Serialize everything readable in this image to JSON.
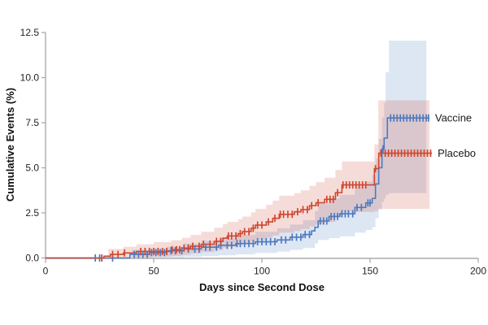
{
  "colors": {
    "vaccine_line": "#4d79bf",
    "placebo_line": "#d0462f",
    "vaccine_band": "rgba(77,121,191,0.19)",
    "placebo_band": "rgba(208,70,47,0.19)",
    "axis_line": "#ababab",
    "tick_text": "#231f20"
  },
  "chart_data": {
    "type": "line",
    "subtype": "kaplan-meier-cumulative-incidence-steps",
    "title": "",
    "xlabel": "Days since Second Dose",
    "ylabel": "Cumulative Events (%)",
    "xlim": [
      0,
      200
    ],
    "ylim": [
      0,
      12.5
    ],
    "grid": false,
    "legend_position": "labels-at-line-ends",
    "x_ticks": [
      {
        "v": 0,
        "label": "0"
      },
      {
        "v": 50,
        "label": "50"
      },
      {
        "v": 100,
        "label": "100"
      },
      {
        "v": 150,
        "label": "150"
      },
      {
        "v": 200,
        "label": "200"
      }
    ],
    "y_ticks": [
      {
        "v": 0,
        "label": "0.0"
      },
      {
        "v": 2.5,
        "label": "2.5"
      },
      {
        "v": 5,
        "label": "5.0"
      },
      {
        "v": 7.5,
        "label": "7.5"
      },
      {
        "v": 10,
        "label": "10.0"
      },
      {
        "v": 12.5,
        "label": "12.5"
      }
    ],
    "series": [
      {
        "name": "Vaccine",
        "color": "#4d79bf",
        "band_color": "rgba(77,121,191,0.19)",
        "final_value_pct": 7.76,
        "steps": [
          [
            0,
            0
          ],
          [
            39,
            0.2
          ],
          [
            48,
            0.3
          ],
          [
            56,
            0.4
          ],
          [
            64,
            0.5
          ],
          [
            72,
            0.6
          ],
          [
            80,
            0.7
          ],
          [
            88,
            0.8
          ],
          [
            97,
            0.9
          ],
          [
            107,
            1.0
          ],
          [
            113,
            1.15
          ],
          [
            119,
            1.3
          ],
          [
            123,
            1.5
          ],
          [
            124.5,
            1.7
          ],
          [
            126,
            2.05
          ],
          [
            131,
            2.3
          ],
          [
            136,
            2.45
          ],
          [
            143,
            2.8
          ],
          [
            148,
            3.05
          ],
          [
            151,
            3.3
          ],
          [
            152.5,
            4.1
          ],
          [
            154,
            5.0
          ],
          [
            155.5,
            6.05
          ],
          [
            156.5,
            6.65
          ],
          [
            158,
            7.76
          ],
          [
            177.4,
            7.76
          ]
        ],
        "censor_days": [
          23,
          25,
          31,
          41,
          43,
          45,
          47,
          49,
          51,
          53,
          55,
          58,
          60,
          63,
          66,
          69,
          71,
          74,
          76,
          79,
          81,
          84,
          86,
          88.5,
          90,
          92,
          94,
          96,
          98,
          100,
          102,
          104,
          106,
          109,
          111,
          114,
          116,
          118,
          120,
          122,
          127,
          128.5,
          130,
          132,
          133.5,
          135,
          137,
          138.5,
          140,
          142,
          144,
          146,
          149,
          150,
          156,
          159.5,
          161,
          162.5,
          164,
          165.5,
          167,
          168.5,
          170,
          171.5,
          173,
          174.5,
          176,
          177
        ],
        "band": [
          [
            40,
            0,
            0.45
          ],
          [
            56,
            0.03,
            0.62
          ],
          [
            64,
            0.06,
            0.8
          ],
          [
            72,
            0.1,
            0.95
          ],
          [
            80,
            0.15,
            1.1
          ],
          [
            88,
            0.2,
            1.28
          ],
          [
            97,
            0.28,
            1.45
          ],
          [
            107,
            0.35,
            1.65
          ],
          [
            113,
            0.45,
            1.85
          ],
          [
            119,
            0.55,
            2.1
          ],
          [
            124.5,
            0.8,
            2.6
          ],
          [
            126,
            1.0,
            3.0
          ],
          [
            131,
            1.1,
            3.3
          ],
          [
            136,
            1.2,
            3.5
          ],
          [
            143,
            1.4,
            3.95
          ],
          [
            148,
            1.55,
            4.25
          ],
          [
            151,
            1.7,
            4.6
          ],
          [
            152.5,
            2.2,
            5.5
          ],
          [
            154,
            2.7,
            6.6
          ],
          [
            155.5,
            3.1,
            7.8
          ],
          [
            156.5,
            3.3,
            8.6
          ],
          [
            157.2,
            3.5,
            10.3
          ],
          [
            158.7,
            3.6,
            12.05
          ],
          [
            176,
            3.6,
            12.05
          ]
        ]
      },
      {
        "name": "Placebo",
        "color": "#d0462f",
        "band_color": "rgba(208,70,47,0.19)",
        "final_value_pct": 5.81,
        "steps": [
          [
            0,
            0
          ],
          [
            27,
            0.1
          ],
          [
            30,
            0.2
          ],
          [
            36,
            0.28
          ],
          [
            42,
            0.36
          ],
          [
            58,
            0.46
          ],
          [
            63,
            0.55
          ],
          [
            67,
            0.65
          ],
          [
            72,
            0.76
          ],
          [
            78,
            0.92
          ],
          [
            82,
            1.1
          ],
          [
            84,
            1.22
          ],
          [
            89,
            1.35
          ],
          [
            91,
            1.46
          ],
          [
            95,
            1.65
          ],
          [
            97,
            1.82
          ],
          [
            102,
            2.0
          ],
          [
            105,
            2.2
          ],
          [
            108,
            2.42
          ],
          [
            115,
            2.56
          ],
          [
            118,
            2.68
          ],
          [
            122,
            2.9
          ],
          [
            125,
            3.06
          ],
          [
            129,
            3.25
          ],
          [
            134,
            3.62
          ],
          [
            137,
            4.05
          ],
          [
            152,
            4.95
          ],
          [
            154,
            5.81
          ],
          [
            178.6,
            5.81
          ]
        ],
        "censor_days": [
          26,
          31,
          33.5,
          36.5,
          44,
          46,
          48,
          50,
          52,
          54,
          56,
          58.5,
          60.5,
          62,
          64,
          66,
          68,
          71,
          73,
          76,
          79,
          81,
          84.5,
          86,
          88,
          90,
          92,
          94,
          96,
          98,
          100,
          103,
          106,
          108.5,
          110,
          112,
          114,
          116.5,
          119,
          121,
          123,
          126,
          130,
          131.5,
          133,
          135,
          137.5,
          139,
          140.5,
          142,
          143.5,
          145,
          146.5,
          148,
          152.5,
          155,
          157,
          158.5,
          160,
          161.5,
          163,
          164.5,
          166,
          167.5,
          169,
          170.5,
          172,
          173.5,
          175,
          176.5,
          178
        ],
        "band": [
          [
            29,
            0,
            0.5
          ],
          [
            36,
            0.02,
            0.62
          ],
          [
            42,
            0.05,
            0.76
          ],
          [
            50,
            0.08,
            0.88
          ],
          [
            58,
            0.12,
            0.98
          ],
          [
            63,
            0.18,
            1.12
          ],
          [
            67,
            0.25,
            1.28
          ],
          [
            72,
            0.33,
            1.45
          ],
          [
            78,
            0.45,
            1.68
          ],
          [
            82,
            0.55,
            1.88
          ],
          [
            84,
            0.62,
            2.0
          ],
          [
            89,
            0.7,
            2.15
          ],
          [
            91,
            0.78,
            2.3
          ],
          [
            95,
            0.9,
            2.52
          ],
          [
            97,
            1.0,
            2.72
          ],
          [
            102,
            1.12,
            2.95
          ],
          [
            105,
            1.25,
            3.18
          ],
          [
            108,
            1.4,
            3.45
          ],
          [
            115,
            1.5,
            3.6
          ],
          [
            118,
            1.6,
            3.75
          ],
          [
            122,
            1.75,
            4.0
          ],
          [
            125,
            1.85,
            4.2
          ],
          [
            129,
            2.0,
            4.45
          ],
          [
            134,
            2.28,
            4.88
          ],
          [
            137,
            2.55,
            5.35
          ],
          [
            152,
            2.6,
            6.3
          ],
          [
            153.8,
            2.72,
            8.74
          ],
          [
            177.5,
            2.72,
            8.74
          ]
        ]
      }
    ]
  }
}
